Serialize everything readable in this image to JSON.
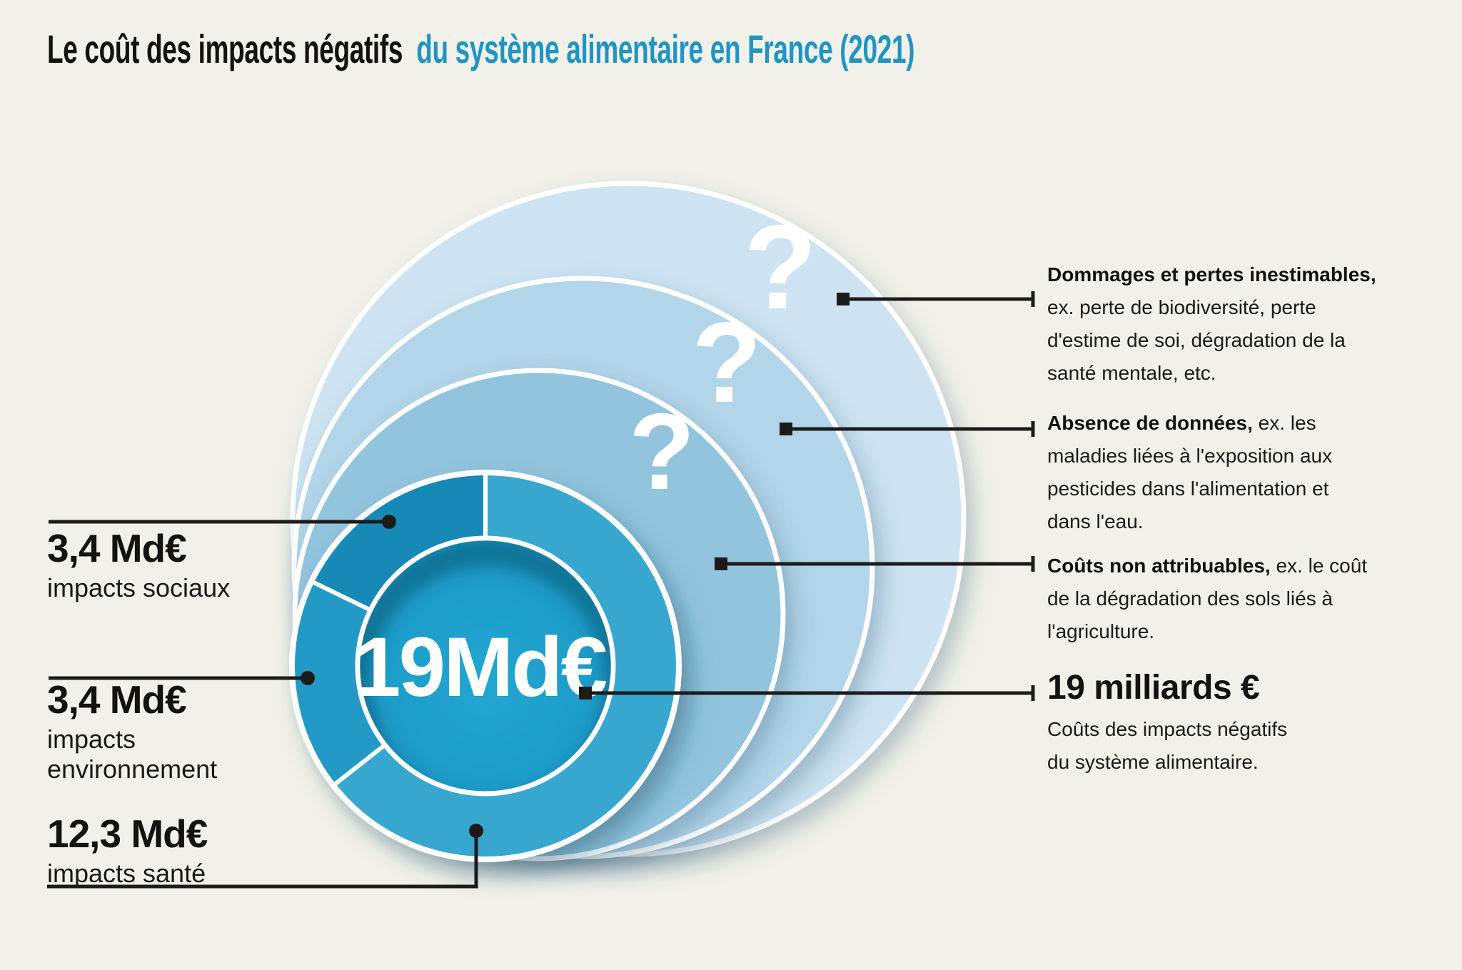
{
  "title": {
    "black": "Le coût des impacts négatifs",
    "blue": "du système alimentaire en France (2021)"
  },
  "colors": {
    "background": "#f2f1e9",
    "title_accent": "#1e95c3",
    "ring_outer": "#cde3f1",
    "ring_middle": "#b2d5e9",
    "ring_inner": "#92c4de",
    "segment_sociaux": "#1689b6",
    "segment_environnement": "#2399c6",
    "segment_sante": "#37a7d0",
    "donut_center": "#1c9dca",
    "connector": "#1d1b1a",
    "question_mark": "#ffffff"
  },
  "chart_data": {
    "type": "pie",
    "subtype": "donut-with-unquantified-outer-rings",
    "title": "Le coût des impacts négatifs du système alimentaire en France (2021)",
    "units": "Md€ (milliards d'euros)",
    "total_value": 19,
    "center_label": "19Md€",
    "start_angle_deg": 90,
    "direction": "counterclockwise",
    "legend_position": "callout-left",
    "segments": [
      {
        "id": "sociaux",
        "label": "impacts sociaux",
        "value": 3.4,
        "value_label": "3,4 Md€",
        "color": "#1689b6"
      },
      {
        "id": "environnement",
        "label": "impacts environnement",
        "value": 3.4,
        "value_label": "3,4 Md€",
        "color": "#2399c6"
      },
      {
        "id": "sante",
        "label": "impacts santé",
        "value": 12.3,
        "value_label": "12,3 Md€",
        "color": "#37a7d0"
      }
    ],
    "outer_rings": [
      {
        "symbol": "?",
        "label": "Dommages et pertes inestimables",
        "description": "ex. perte de biodiversité, perte d'estime de soi, dégradation de la santé mentale, etc.",
        "color": "#cde3f1"
      },
      {
        "symbol": "?",
        "label": "Absence de données",
        "description": "ex. les maladies liées à l'exposition aux pesticides dans l'alimentation et dans l'eau.",
        "color": "#b2d5e9"
      },
      {
        "symbol": "?",
        "label": "Coûts non attribuables",
        "description": "ex. le coût de la dégradation des sols liés à l'agriculture.",
        "color": "#92c4de"
      }
    ],
    "total_annotation": {
      "label": "19 milliards €",
      "description": "Coûts des impacts négatifs du système alimentaire."
    }
  },
  "left_labels": [
    {
      "value": "3,4 Md€",
      "lines": "impacts sociaux"
    },
    {
      "value": "3,4 Md€",
      "lines": "impacts\nenvironnement"
    },
    {
      "value": "12,3 Md€",
      "lines": "impacts santé"
    }
  ],
  "right_labels": [
    {
      "bold": "Dommages et pertes inestimables,",
      "rest": "ex. perte de biodiversité, perte\nd'estime de soi, dégradation de la\nsanté mentale, etc."
    },
    {
      "bold": "Absence de données,",
      "rest": "ex. les\nmaladies liées à l'exposition aux\npesticides dans l'alimentation et\ndans l'eau."
    },
    {
      "bold": "Coûts non attribuables,",
      "rest": "ex. le coût\nde la dégradation des sols liés à\nl'agriculture."
    }
  ],
  "total_label": {
    "value": "19 milliards €",
    "desc": "Coûts des impacts négatifs\ndu système alimentaire."
  }
}
